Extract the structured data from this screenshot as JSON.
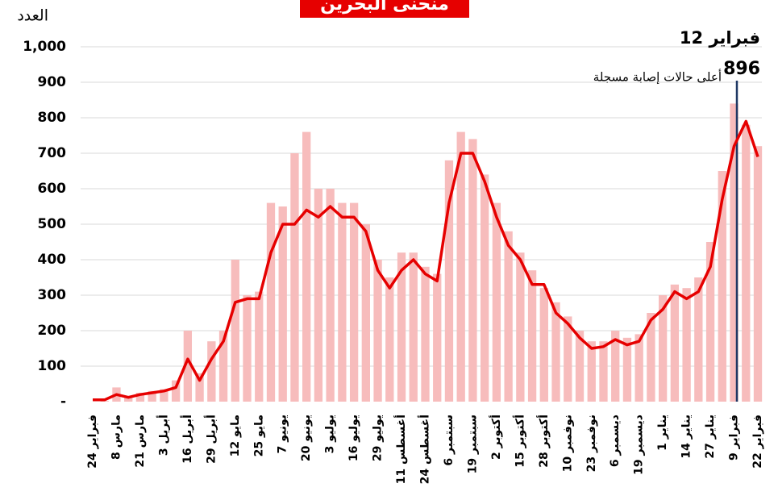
{
  "chart_data": {
    "type": "bar_line",
    "title": "منحنى البحرين",
    "y_label": "العدد",
    "annotation": {
      "date": "12 فبراير",
      "value": 896,
      "text": "أعلى حالات إصابة مسجلة"
    },
    "categories": [
      "24 فبراير",
      null,
      "8 مارس",
      null,
      "21 مارس",
      null,
      "3 أبريل",
      null,
      "16 أبريل",
      null,
      "29 أبريل",
      null,
      "12 مايو",
      null,
      "25 مايو",
      null,
      "7 يونيو",
      null,
      "20 يونيو",
      null,
      "3 يوليو",
      null,
      "16 يوليو",
      null,
      "29 يوليو",
      null,
      "11 أغسطس",
      null,
      "24 أغسطس",
      null,
      "6 سبتمبر",
      null,
      "19 سبتمبر",
      null,
      "2 أكتوبر",
      null,
      "15 أكتوبر",
      null,
      "28 أكتوبر",
      null,
      "10 نوفمبر",
      null,
      "23 نوفمبر",
      null,
      "6 ديسمبر",
      null,
      "19 ديسمبر",
      null,
      "1 يناير",
      null,
      "14 يناير",
      null,
      "27 يناير",
      null,
      "9 فبراير",
      null,
      "22 فبراير"
    ],
    "series": [
      {
        "kind": "bar",
        "color": "#f7bcbc",
        "values": [
          0,
          2,
          40,
          15,
          25,
          30,
          35,
          60,
          200,
          80,
          170,
          200,
          400,
          300,
          310,
          560,
          550,
          700,
          760,
          600,
          600,
          560,
          560,
          500,
          400,
          350,
          420,
          420,
          380,
          360,
          680,
          760,
          740,
          640,
          560,
          480,
          420,
          370,
          320,
          280,
          240,
          200,
          170,
          170,
          200,
          180,
          190,
          250,
          300,
          330,
          320,
          350,
          450,
          650,
          840,
          780,
          720
        ]
      },
      {
        "kind": "line",
        "color": "#e60000",
        "values": [
          5,
          5,
          20,
          12,
          20,
          25,
          30,
          40,
          120,
          60,
          120,
          170,
          280,
          290,
          290,
          420,
          500,
          500,
          540,
          520,
          550,
          520,
          520,
          480,
          370,
          320,
          370,
          400,
          360,
          340,
          560,
          700,
          700,
          620,
          520,
          440,
          400,
          330,
          330,
          250,
          220,
          180,
          150,
          155,
          175,
          160,
          170,
          230,
          260,
          310,
          290,
          310,
          380,
          570,
          720,
          790,
          690
        ]
      }
    ],
    "ylim": [
      0,
      1000
    ],
    "yticks": [
      {
        "value": 0,
        "label": "-"
      },
      100,
      200,
      300,
      400,
      500,
      600,
      700,
      800,
      900,
      {
        "value": 1000,
        "label": "1,000"
      }
    ],
    "grid": true
  }
}
